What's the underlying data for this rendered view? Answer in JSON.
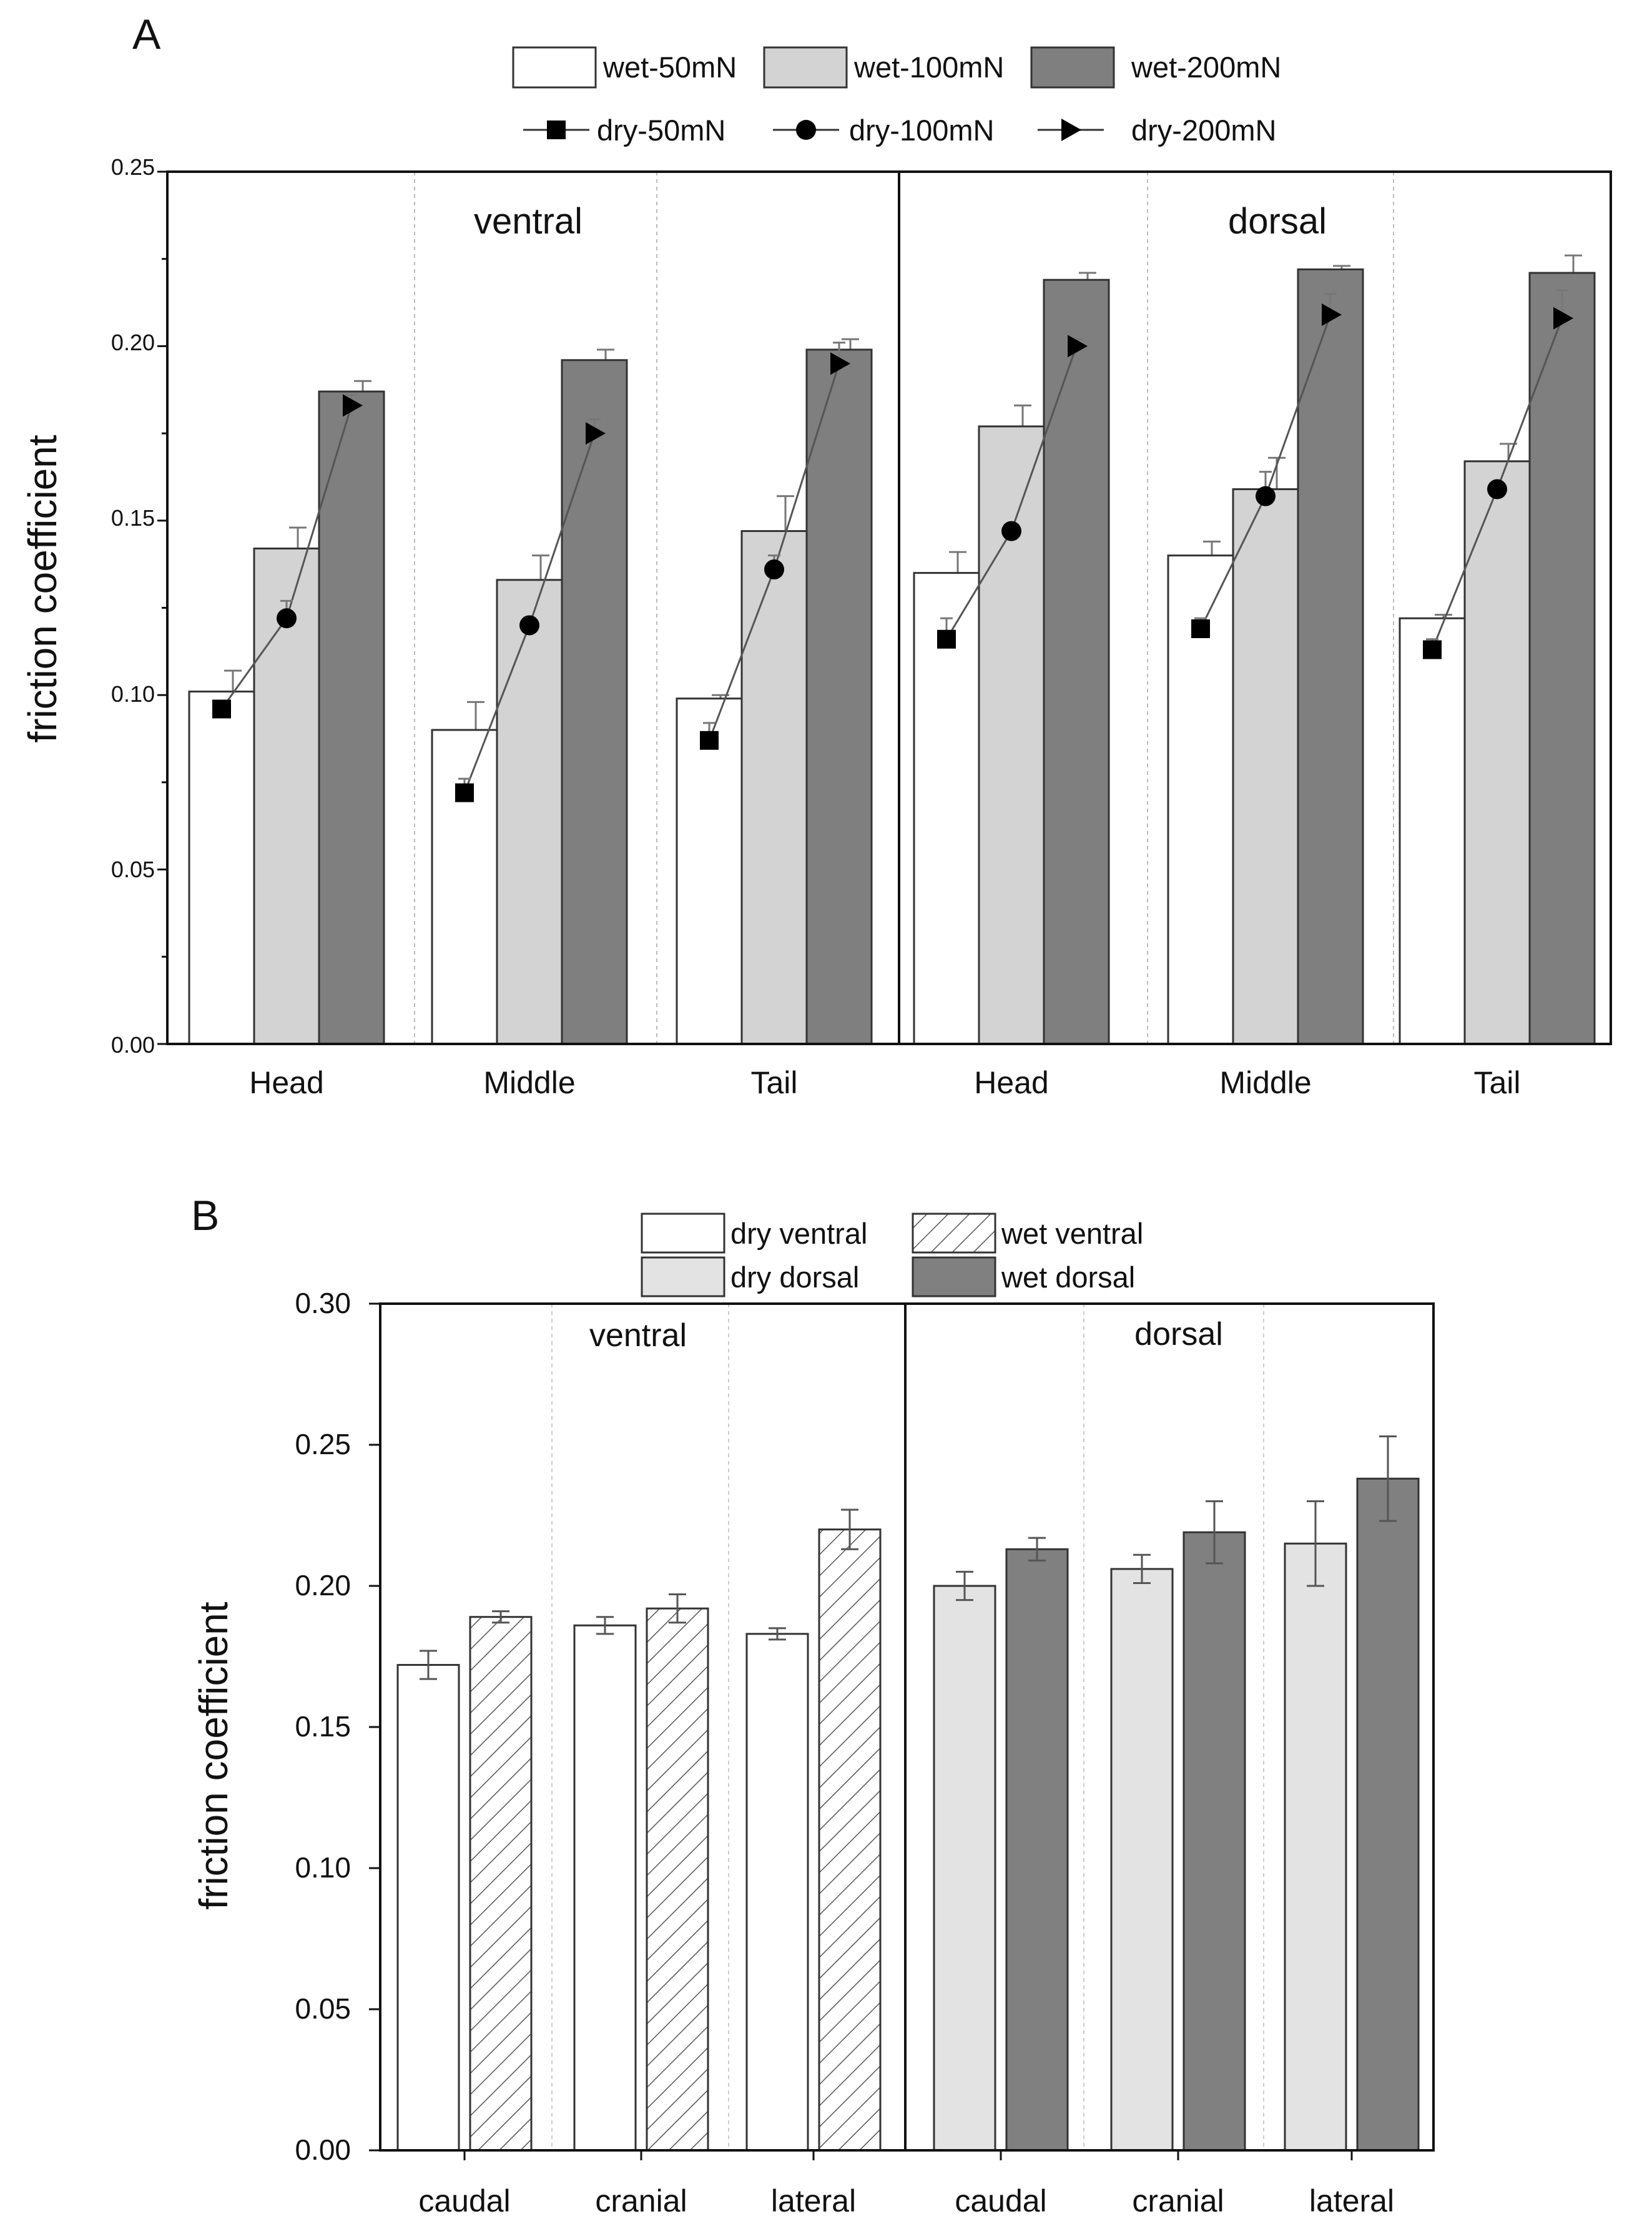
{
  "chart_data": [
    {
      "panel": "A",
      "type": "bar",
      "ylabel": "friction coefficient",
      "ylim": [
        0,
        0.25
      ],
      "yticks": [
        "0.00",
        "0.05",
        "0.10",
        "0.15",
        "0.20",
        "0.25"
      ],
      "groups": [
        {
          "name": "ventral",
          "categories": [
            "Head",
            "Middle",
            "Tail"
          ]
        },
        {
          "name": "dorsal",
          "categories": [
            "Head",
            "Middle",
            "Tail"
          ]
        }
      ],
      "bar_series": [
        {
          "name": "wet-50mN",
          "color": "#ffffff",
          "values": [
            0.101,
            0.09,
            0.099,
            0.135,
            0.14,
            0.122
          ],
          "errors": [
            0.006,
            0.008,
            0.001,
            0.006,
            0.004,
            0.001
          ]
        },
        {
          "name": "wet-100mN",
          "color": "#d3d3d3",
          "values": [
            0.142,
            0.133,
            0.147,
            0.177,
            0.159,
            0.167
          ],
          "errors": [
            0.006,
            0.007,
            0.01,
            0.006,
            0.009,
            0.005
          ]
        },
        {
          "name": "wet-200mN",
          "color": "#7f7f7f",
          "values": [
            0.187,
            0.196,
            0.199,
            0.219,
            0.222,
            0.221
          ],
          "errors": [
            0.003,
            0.003,
            0.003,
            0.002,
            0.001,
            0.005
          ]
        }
      ],
      "line_series": [
        {
          "name": "dry-50mN",
          "marker": "square",
          "values": [
            0.096,
            0.072,
            0.087,
            0.116,
            0.119,
            0.113
          ],
          "errors": [
            0.001,
            0.004,
            0.005,
            0.006,
            0.003,
            0.003
          ]
        },
        {
          "name": "dry-100mN",
          "marker": "circle",
          "values": [
            0.122,
            0.12,
            0.136,
            0.147,
            0.157,
            0.159
          ],
          "errors": [
            0.005,
            0.002,
            0.004,
            0.002,
            0.007,
            0.002
          ]
        },
        {
          "name": "dry-200mN",
          "marker": "triangle-right",
          "values": [
            0.183,
            0.175,
            0.195,
            0.2,
            0.209,
            0.208
          ],
          "errors": [
            0.003,
            0.004,
            0.006,
            0.002,
            0.006,
            0.008
          ]
        }
      ]
    },
    {
      "panel": "B",
      "type": "bar",
      "ylabel": "friction coefficient",
      "ylim": [
        0,
        0.3
      ],
      "yticks": [
        "0.00",
        "0.05",
        "0.10",
        "0.15",
        "0.20",
        "0.25",
        "0.30"
      ],
      "groups": [
        {
          "name": "ventral",
          "categories": [
            "caudal",
            "cranial",
            "lateral"
          ]
        },
        {
          "name": "dorsal",
          "categories": [
            "caudal",
            "cranial",
            "lateral"
          ]
        }
      ],
      "legend": [
        {
          "name": "dry ventral",
          "fill": "#ffffff",
          "hatch": false
        },
        {
          "name": "wet ventral",
          "fill": "#ffffff",
          "hatch": true
        },
        {
          "name": "dry dorsal",
          "fill": "#e3e3e3",
          "hatch": false
        },
        {
          "name": "wet dorsal",
          "fill": "#808080",
          "hatch": false
        }
      ],
      "bars": [
        {
          "name": "dry",
          "values": [
            0.172,
            0.186,
            0.183,
            0.2,
            0.206,
            0.215
          ],
          "errors": [
            0.005,
            0.003,
            0.002,
            0.005,
            0.005,
            0.015
          ]
        },
        {
          "name": "wet",
          "values": [
            0.189,
            0.192,
            0.22,
            0.213,
            0.219,
            0.238
          ],
          "errors": [
            0.002,
            0.005,
            0.007,
            0.004,
            0.011,
            0.015
          ]
        }
      ]
    }
  ]
}
